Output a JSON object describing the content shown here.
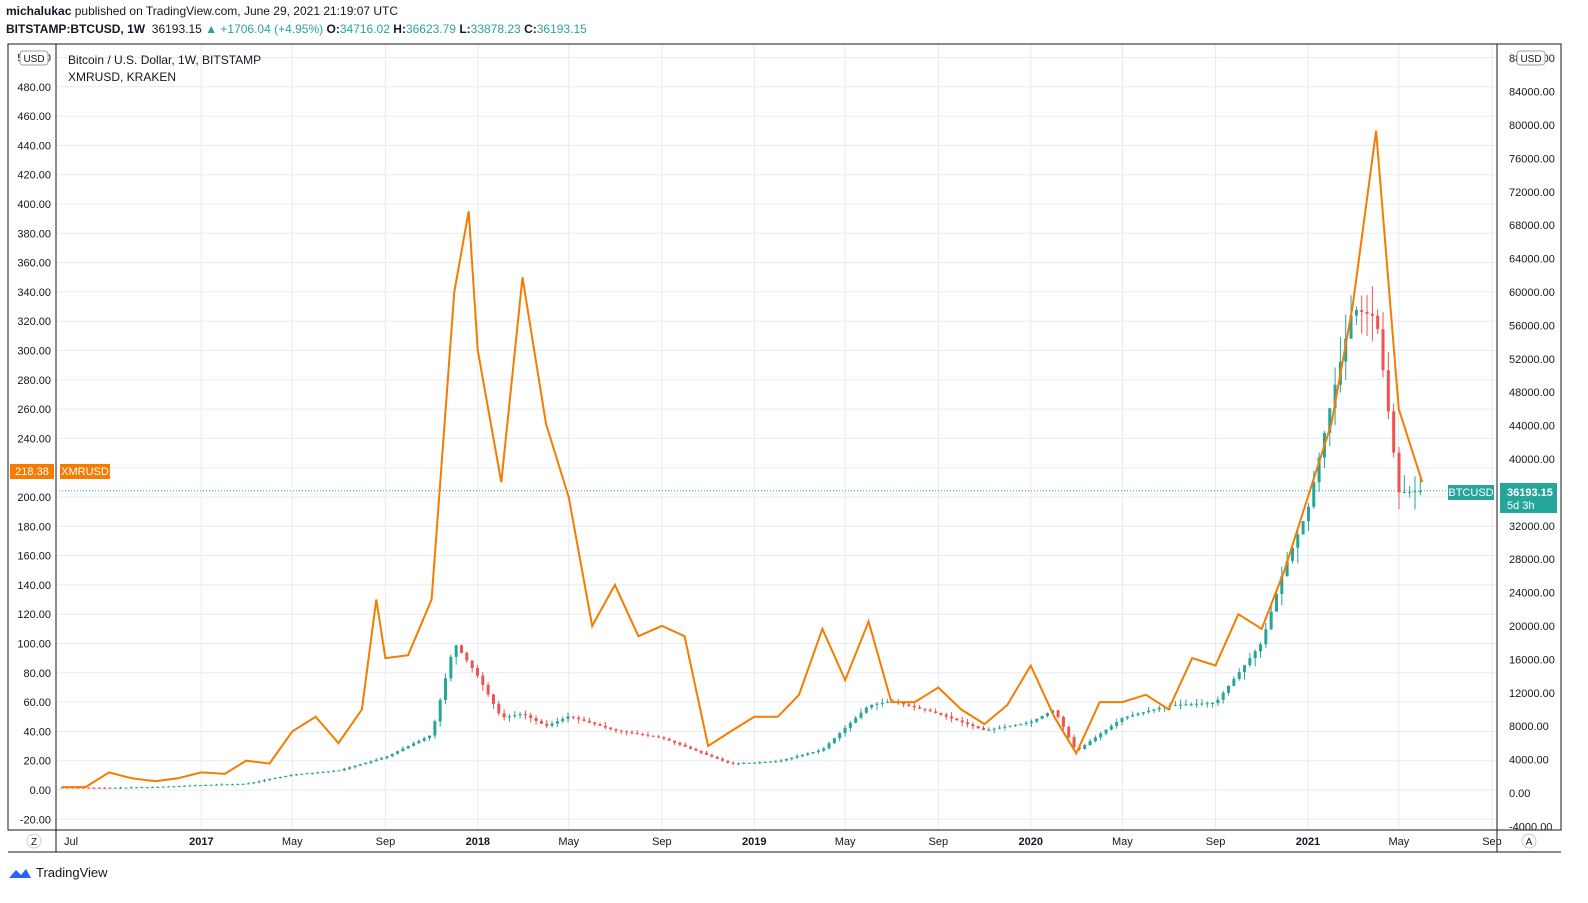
{
  "header": {
    "author": "michalukac",
    "published_text": "published on TradingView.com, June 29, 2021 21:19:07 UTC",
    "symbol": "BITSTAMP:BTCUSD, 1W",
    "price": "36193.15",
    "change": "▲ +1706.04 (+4.95%)",
    "o_label": "O:",
    "o_value": "34716.02",
    "h_label": "H:",
    "h_value": "36623.79",
    "l_label": "L:",
    "l_value": "33878.23",
    "c_label": "C:",
    "c_value": "36193.15"
  },
  "legend": {
    "main": "Bitcoin / U.S. Dollar, 1W, BITSTAMP",
    "compare": "XMRUSD, KRAKEN"
  },
  "left_axis": {
    "unit_label": "USD",
    "ticks": [
      "500.00",
      "480.00",
      "460.00",
      "440.00",
      "420.00",
      "400.00",
      "380.00",
      "360.00",
      "340.00",
      "320.00",
      "300.00",
      "280.00",
      "260.00",
      "240.00",
      "220.00",
      "200.00",
      "180.00",
      "160.00",
      "140.00",
      "120.00",
      "100.00",
      "80.00",
      "60.00",
      "40.00",
      "20.00",
      "0.00",
      "-20.00"
    ]
  },
  "right_axis": {
    "unit_label": "USD",
    "ticks": [
      "88000.00",
      "84000.00",
      "80000.00",
      "76000.00",
      "72000.00",
      "68000.00",
      "64000.00",
      "60000.00",
      "56000.00",
      "52000.00",
      "48000.00",
      "44000.00",
      "40000.00",
      "36000.00",
      "32000.00",
      "28000.00",
      "24000.00",
      "20000.00",
      "16000.00",
      "12000.00",
      "8000.00",
      "4000.00",
      "0.00",
      "-4000.00"
    ]
  },
  "x_axis": {
    "ticks": [
      "Jul",
      "2017",
      "May",
      "Sep",
      "2018",
      "May",
      "Sep",
      "2019",
      "May",
      "Sep",
      "2020",
      "May",
      "Sep",
      "2021",
      "May",
      "Sep"
    ]
  },
  "badges": {
    "xmr_value": "218.38",
    "xmr_name": "XMRUSD",
    "btc_name": "BTCUSD",
    "btc_value": "36193.15",
    "btc_countdown": "5d 3h"
  },
  "corner": {
    "left": "Z",
    "right": "A"
  },
  "footer": {
    "brand": "TradingView"
  },
  "colors": {
    "xmr_line": "#f57c00",
    "candle_up": "#26a69a",
    "candle_down": "#ef5350",
    "grid": "#e8ebef",
    "xmr_badge": "#f57c00",
    "btc_badge": "#26a69a"
  },
  "chart_data": {
    "type": "line",
    "title": "Bitcoin / U.S. Dollar, 1W, BITSTAMP",
    "x_start": "2016-07",
    "series": [
      {
        "name": "XMRUSD",
        "axis": "left",
        "date": [
          "2016-07",
          "2016-08",
          "2016-09",
          "2016-10",
          "2016-11",
          "2016-12",
          "2017-01",
          "2017-02",
          "2017-03",
          "2017-04",
          "2017-05",
          "2017-06",
          "2017-07",
          "2017-08",
          "2017-08-20",
          "2017-09",
          "2017-10",
          "2017-11",
          "2017-12",
          "2017-12-20",
          "2018-01",
          "2018-02",
          "2018-03",
          "2018-04",
          "2018-05",
          "2018-06",
          "2018-07",
          "2018-08",
          "2018-09",
          "2018-10",
          "2018-11",
          "2018-12",
          "2019-01",
          "2019-02",
          "2019-03",
          "2019-04",
          "2019-05",
          "2019-06",
          "2019-07",
          "2019-08",
          "2019-09",
          "2019-10",
          "2019-11",
          "2019-12",
          "2020-01",
          "2020-02",
          "2020-03",
          "2020-04",
          "2020-05",
          "2020-06",
          "2020-07",
          "2020-08",
          "2020-09",
          "2020-10",
          "2020-11",
          "2020-12",
          "2021-01",
          "2021-02",
          "2021-03",
          "2021-04",
          "2021-05",
          "2021-06"
        ],
        "value": [
          2,
          2,
          12,
          8,
          6,
          8,
          12,
          11,
          20,
          18,
          40,
          50,
          32,
          55,
          130,
          90,
          92,
          130,
          340,
          395,
          300,
          210,
          350,
          250,
          200,
          112,
          140,
          105,
          112,
          105,
          30,
          40,
          50,
          50,
          65,
          110,
          75,
          115,
          60,
          60,
          70,
          55,
          45,
          58,
          85,
          50,
          25,
          60,
          60,
          65,
          55,
          90,
          85,
          120,
          110,
          150,
          200,
          250,
          330,
          450,
          260,
          210
        ],
        "ylim": [
          -20,
          500
        ]
      },
      {
        "name": "BTCUSD",
        "axis": "right",
        "date": [
          "2016-07",
          "2016-09",
          "2016-11",
          "2017-01",
          "2017-03",
          "2017-05",
          "2017-07",
          "2017-09",
          "2017-11",
          "2017-12",
          "2018-01",
          "2018-02",
          "2018-03",
          "2018-04",
          "2018-05",
          "2018-07",
          "2018-09",
          "2018-11",
          "2018-12",
          "2019-02",
          "2019-04",
          "2019-06",
          "2019-07",
          "2019-09",
          "2019-11",
          "2020-01",
          "2020-02",
          "2020-03",
          "2020-05",
          "2020-07",
          "2020-09",
          "2020-11",
          "2020-12",
          "2021-01",
          "2021-02",
          "2021-03",
          "2021-04",
          "2021-05",
          "2021-06"
        ],
        "value": [
          650,
          610,
          720,
          950,
          1100,
          2200,
          2700,
          4300,
          7000,
          18000,
          14000,
          9000,
          9500,
          8000,
          9200,
          7500,
          6600,
          4500,
          3500,
          3800,
          5200,
          10500,
          11000,
          9500,
          7500,
          8500,
          10000,
          5000,
          9000,
          10500,
          10800,
          18000,
          27000,
          34000,
          47000,
          58000,
          57000,
          36000,
          36193
        ],
        "ylim": [
          -4000,
          88000
        ]
      }
    ]
  }
}
